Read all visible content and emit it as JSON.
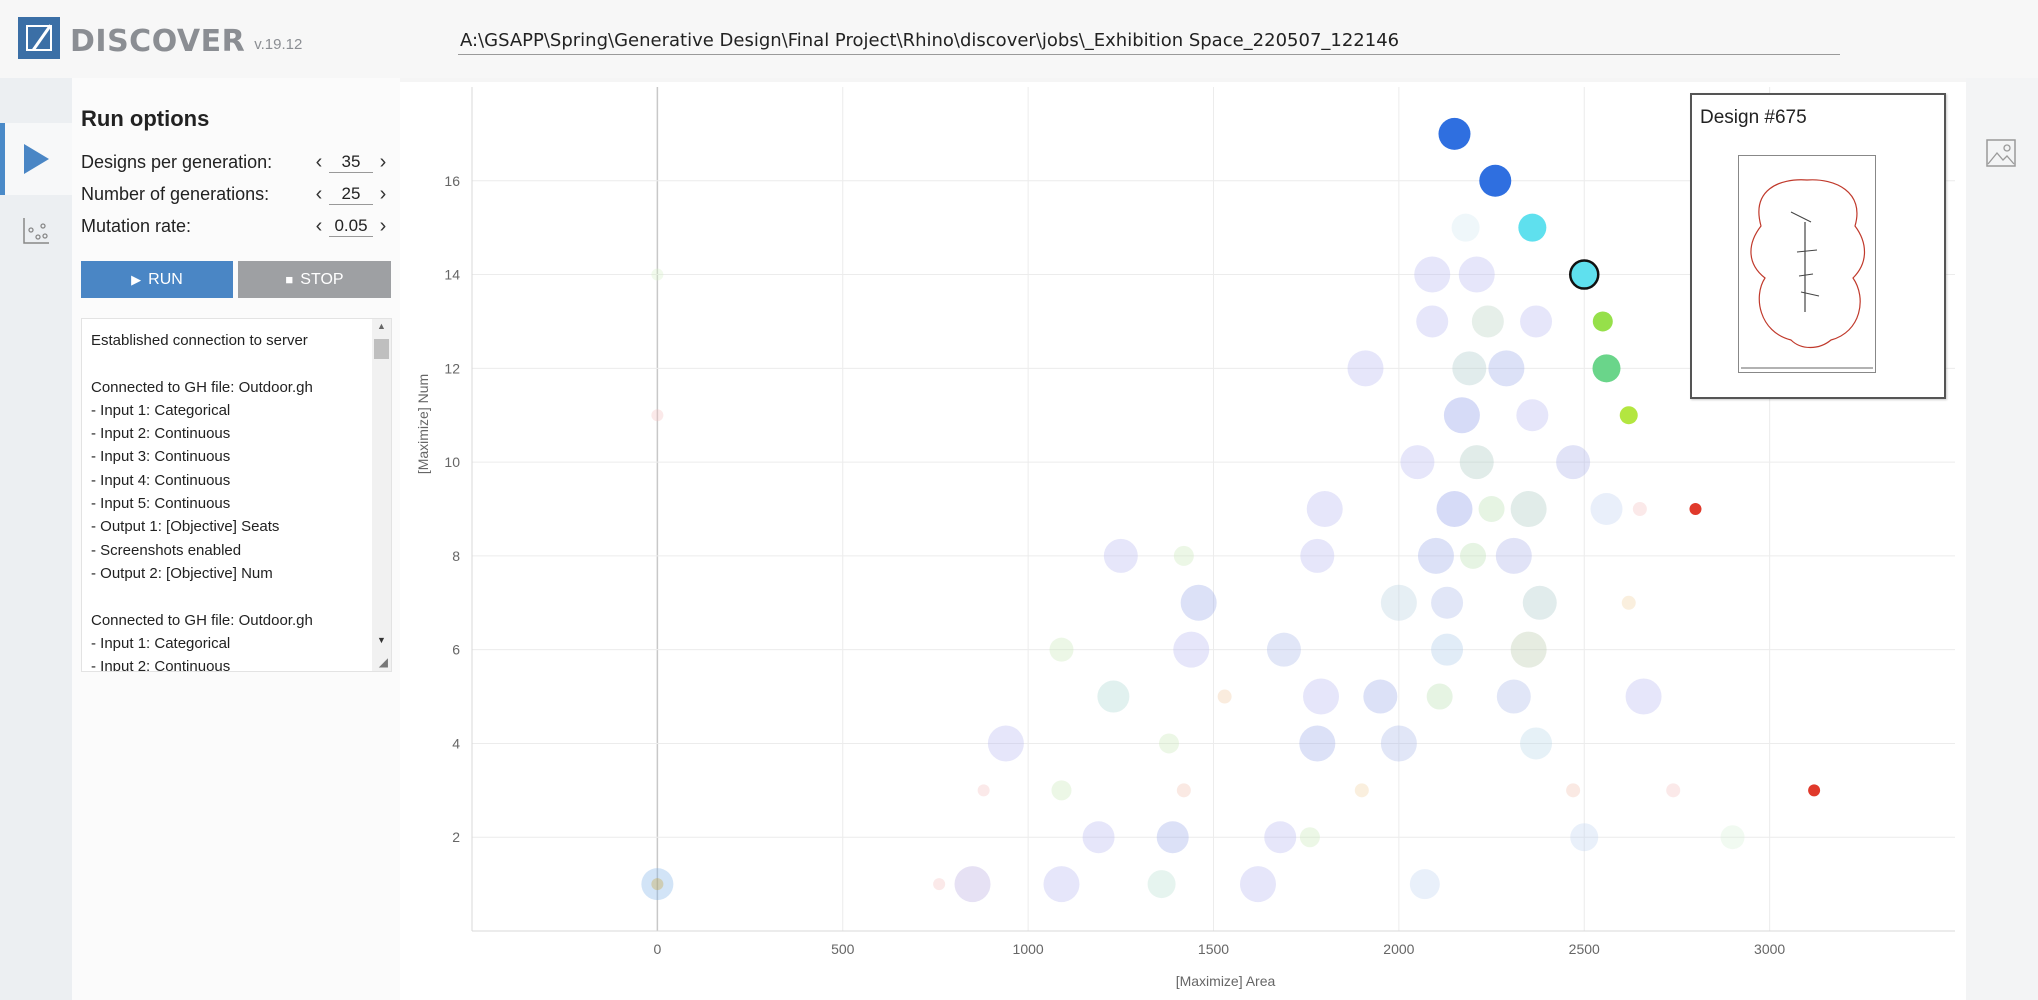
{
  "app": {
    "name": "DISCOVER",
    "version": "v.19.12"
  },
  "header": {
    "job_path": "A:\\GSAPP\\Spring\\Generative Design\\Final Project\\Rhino\\discover\\jobs\\_Exhibition Space_220507_122146"
  },
  "rail": {
    "tabs": [
      {
        "icon": "play-icon",
        "active": true
      },
      {
        "icon": "scatter-plot-icon",
        "active": false
      }
    ]
  },
  "run_options": {
    "title": "Run options",
    "designs_per_generation": {
      "label": "Designs per generation:",
      "value": "35"
    },
    "number_of_generations": {
      "label": "Number of generations:",
      "value": "25"
    },
    "mutation_rate": {
      "label": "Mutation rate:",
      "value": "0.05"
    },
    "run_label": "RUN",
    "stop_label": "STOP"
  },
  "log": {
    "lines": [
      "Established connection to server",
      "",
      "Connected to GH file: Outdoor.gh",
      "- Input 1: Categorical",
      "- Input 2: Continuous",
      "- Input 3: Continuous",
      "- Input 4: Continuous",
      "- Input 5: Continuous",
      "- Output 1: [Objective] Seats",
      "- Screenshots enabled",
      "- Output 2: [Objective] Num",
      "",
      "Connected to GH file: Outdoor.gh",
      "- Input 1: Categorical",
      "- Input 2: Continuous"
    ]
  },
  "preview": {
    "title": "Design #675"
  },
  "colors": {
    "accent": "#4a86c5",
    "stop": "#9ea0a3",
    "highlight_blue": "#2f6fe0",
    "highlight_cyan": "#5fe0ee",
    "highlight_green": "#6ad58a",
    "highlight_lime": "#b3e640",
    "highlight_red": "#e0392b"
  },
  "chart_data": {
    "type": "scatter",
    "xlabel": "[Maximize] Area",
    "ylabel": "[Maximize] Num",
    "xlim": [
      -500,
      3500
    ],
    "ylim": [
      0,
      18
    ],
    "xticks": [
      0,
      500,
      1000,
      1500,
      2000,
      2500,
      3000
    ],
    "yticks": [
      2,
      4,
      6,
      8,
      10,
      12,
      14,
      16
    ],
    "grid": true,
    "highlighted": [
      {
        "x": 2150,
        "y": 17,
        "color": "#2f6fe0",
        "size": 16
      },
      {
        "x": 2260,
        "y": 16,
        "color": "#2f6fe0",
        "size": 16
      },
      {
        "x": 2360,
        "y": 15,
        "color": "#5fe0ee",
        "size": 14
      },
      {
        "x": 2500,
        "y": 14,
        "color": "#5fe0ee",
        "size": 14,
        "selected": true
      },
      {
        "x": 2550,
        "y": 13,
        "color": "#96e04a",
        "size": 10
      },
      {
        "x": 2560,
        "y": 12,
        "color": "#6ad58a",
        "size": 14
      },
      {
        "x": 2620,
        "y": 11,
        "color": "#b3e640",
        "size": 9
      },
      {
        "x": 2800,
        "y": 9,
        "color": "#e0392b",
        "size": 6
      },
      {
        "x": 3120,
        "y": 3,
        "color": "#e0392b",
        "size": 6
      }
    ],
    "faded": [
      {
        "x": 0,
        "y": 1,
        "color": "#7fb3e8",
        "size": 16
      },
      {
        "x": 0,
        "y": 1,
        "color": "#c9a23a",
        "size": 6
      },
      {
        "x": 850,
        "y": 1,
        "color": "#b7a8e0",
        "size": 18
      },
      {
        "x": 1090,
        "y": 1,
        "color": "#b7b8f0",
        "size": 18
      },
      {
        "x": 1360,
        "y": 1,
        "color": "#b8e0d0",
        "size": 14
      },
      {
        "x": 1620,
        "y": 1,
        "color": "#b7b8f0",
        "size": 18
      },
      {
        "x": 2070,
        "y": 1,
        "color": "#c0d4f0",
        "size": 15
      },
      {
        "x": 1190,
        "y": 2,
        "color": "#b7b8f0",
        "size": 16
      },
      {
        "x": 1390,
        "y": 2,
        "color": "#9aa8e8",
        "size": 16
      },
      {
        "x": 1680,
        "y": 2,
        "color": "#b7b8f0",
        "size": 16
      },
      {
        "x": 2500,
        "y": 2,
        "color": "#c0d4f0",
        "size": 14
      },
      {
        "x": 940,
        "y": 4,
        "color": "#b7b8f0",
        "size": 18
      },
      {
        "x": 1780,
        "y": 4,
        "color": "#9aa8e8",
        "size": 18
      },
      {
        "x": 2000,
        "y": 4,
        "color": "#a8b8e8",
        "size": 18
      },
      {
        "x": 2370,
        "y": 4,
        "color": "#b8d8e8",
        "size": 16
      },
      {
        "x": 1230,
        "y": 5,
        "color": "#a8d8d0",
        "size": 16
      },
      {
        "x": 1790,
        "y": 5,
        "color": "#b7b8f0",
        "size": 18
      },
      {
        "x": 1950,
        "y": 5,
        "color": "#9aa8e8",
        "size": 17
      },
      {
        "x": 2310,
        "y": 5,
        "color": "#a8b8e8",
        "size": 17
      },
      {
        "x": 2660,
        "y": 5,
        "color": "#b7b8f0",
        "size": 18
      },
      {
        "x": 1440,
        "y": 6,
        "color": "#b7b8f0",
        "size": 18
      },
      {
        "x": 1690,
        "y": 6,
        "color": "#a8b8e8",
        "size": 17
      },
      {
        "x": 2130,
        "y": 6,
        "color": "#a8c8e8",
        "size": 16
      },
      {
        "x": 2350,
        "y": 6,
        "color": "#b8c8a8",
        "size": 18
      },
      {
        "x": 1460,
        "y": 7,
        "color": "#9aa8e8",
        "size": 18
      },
      {
        "x": 2000,
        "y": 7,
        "color": "#b8d0e0",
        "size": 18
      },
      {
        "x": 2130,
        "y": 7,
        "color": "#a8b8e8",
        "size": 16
      },
      {
        "x": 2380,
        "y": 7,
        "color": "#a8c8c8",
        "size": 17
      },
      {
        "x": 1250,
        "y": 8,
        "color": "#b7b8f0",
        "size": 17
      },
      {
        "x": 1780,
        "y": 8,
        "color": "#b7b8f0",
        "size": 17
      },
      {
        "x": 2100,
        "y": 8,
        "color": "#9aa8e8",
        "size": 18
      },
      {
        "x": 2310,
        "y": 8,
        "color": "#a8b0e8",
        "size": 18
      },
      {
        "x": 1800,
        "y": 9,
        "color": "#b7b8f0",
        "size": 18
      },
      {
        "x": 2150,
        "y": 9,
        "color": "#8a98e8",
        "size": 18
      },
      {
        "x": 2350,
        "y": 9,
        "color": "#a8c8c0",
        "size": 18
      },
      {
        "x": 2560,
        "y": 9,
        "color": "#c0d0f0",
        "size": 16
      },
      {
        "x": 2050,
        "y": 10,
        "color": "#b7b8f0",
        "size": 17
      },
      {
        "x": 2210,
        "y": 10,
        "color": "#a8c8c0",
        "size": 17
      },
      {
        "x": 2470,
        "y": 10,
        "color": "#a8b0e8",
        "size": 17
      },
      {
        "x": 2170,
        "y": 11,
        "color": "#8a98e8",
        "size": 18
      },
      {
        "x": 2360,
        "y": 11,
        "color": "#b7b8f0",
        "size": 16
      },
      {
        "x": 1910,
        "y": 12,
        "color": "#b7b8f0",
        "size": 18
      },
      {
        "x": 2190,
        "y": 12,
        "color": "#a8c8c8",
        "size": 17
      },
      {
        "x": 2290,
        "y": 12,
        "color": "#9aa8e8",
        "size": 18
      },
      {
        "x": 2090,
        "y": 13,
        "color": "#b7b8f0",
        "size": 16
      },
      {
        "x": 2240,
        "y": 13,
        "color": "#b8d0c0",
        "size": 16
      },
      {
        "x": 2370,
        "y": 13,
        "color": "#b7b8f0",
        "size": 16
      },
      {
        "x": 2090,
        "y": 14,
        "color": "#b7b8f0",
        "size": 18
      },
      {
        "x": 2210,
        "y": 14,
        "color": "#b7b8f0",
        "size": 18
      },
      {
        "x": 2180,
        "y": 15,
        "color": "#d0e8f0",
        "size": 14
      },
      {
        "x": 0,
        "y": 11,
        "color": "#f4c0c0",
        "size": 6
      },
      {
        "x": 0,
        "y": 14,
        "color": "#d8f0c8",
        "size": 6
      },
      {
        "x": 760,
        "y": 1,
        "color": "#f4c0c0",
        "size": 6
      },
      {
        "x": 880,
        "y": 3,
        "color": "#f4c0c0",
        "size": 6
      },
      {
        "x": 1420,
        "y": 3,
        "color": "#f0c0b0",
        "size": 7
      },
      {
        "x": 1900,
        "y": 3,
        "color": "#f0d0a0",
        "size": 7
      },
      {
        "x": 2470,
        "y": 3,
        "color": "#f0c0b0",
        "size": 7
      },
      {
        "x": 2740,
        "y": 3,
        "color": "#f4c0c0",
        "size": 7
      },
      {
        "x": 1530,
        "y": 5,
        "color": "#f0c8a0",
        "size": 7
      },
      {
        "x": 2620,
        "y": 7,
        "color": "#f0d0a0",
        "size": 7
      },
      {
        "x": 2650,
        "y": 9,
        "color": "#f4c0c0",
        "size": 7
      },
      {
        "x": 1420,
        "y": 8,
        "color": "#c8e8b8",
        "size": 10
      },
      {
        "x": 1090,
        "y": 6,
        "color": "#c8e8b8",
        "size": 12
      },
      {
        "x": 1090,
        "y": 3,
        "color": "#c8e8b8",
        "size": 10
      },
      {
        "x": 1760,
        "y": 2,
        "color": "#c8e8b8",
        "size": 10
      },
      {
        "x": 1380,
        "y": 4,
        "color": "#c8e8b8",
        "size": 10
      },
      {
        "x": 2110,
        "y": 5,
        "color": "#b8e0b0",
        "size": 13
      },
      {
        "x": 2250,
        "y": 9,
        "color": "#b8e0b0",
        "size": 13
      },
      {
        "x": 2200,
        "y": 8,
        "color": "#b8e0b0",
        "size": 13
      },
      {
        "x": 2900,
        "y": 2,
        "color": "#d8f0d8",
        "size": 12
      }
    ]
  }
}
